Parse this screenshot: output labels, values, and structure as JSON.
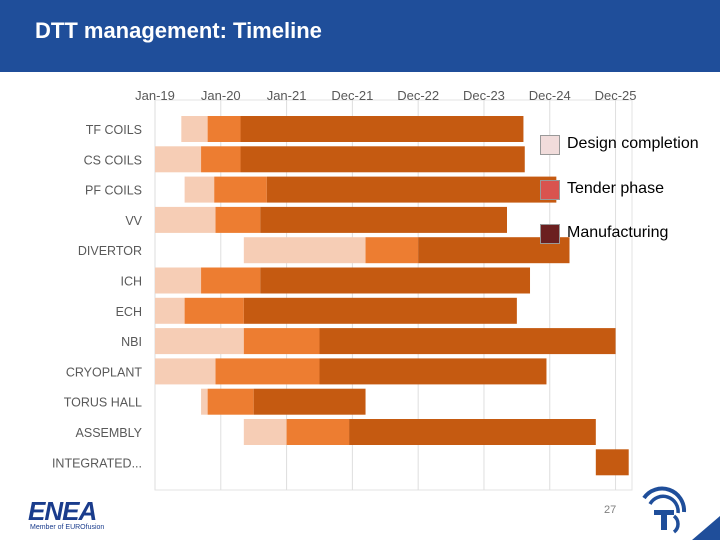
{
  "header": {
    "title": "DTT management: Timeline"
  },
  "chart_data": {
    "type": "gantt",
    "title": "",
    "x_axis": {
      "tick_labels": [
        "Jan-19",
        "Jan-20",
        "Jan-21",
        "Dec-21",
        "Dec-22",
        "Dec-23",
        "Dec-24",
        "Dec-25"
      ],
      "tick_years": [
        2019,
        2020,
        2021,
        2022,
        2023,
        2024,
        2025,
        2026
      ],
      "range": [
        2019,
        2026.25
      ]
    },
    "legend": {
      "placement": "right",
      "entries": [
        {
          "label": "Design completion",
          "color": "#f1dcdb"
        },
        {
          "label": "Tender phase",
          "color": "#d9534f"
        },
        {
          "label": "Manufacturing",
          "color": "#6b1f1f"
        }
      ]
    },
    "series_colors": {
      "design": "#f6cdb5",
      "tender": "#ed7d31",
      "manufacturing": "#c55a11"
    },
    "rows": [
      {
        "name": "TF COILS",
        "design": [
          2019.4,
          2019.8
        ],
        "tender": [
          2019.8,
          2020.3
        ],
        "manufacturing": [
          2020.3,
          2024.6
        ]
      },
      {
        "name": "CS COILS",
        "design": [
          2019.0,
          2019.7
        ],
        "tender": [
          2019.7,
          2020.3
        ],
        "manufacturing": [
          2020.3,
          2024.62
        ]
      },
      {
        "name": "PF COILS",
        "design": [
          2019.45,
          2019.9
        ],
        "tender": [
          2019.9,
          2020.7
        ],
        "manufacturing": [
          2020.7,
          2025.1
        ]
      },
      {
        "name": "VV",
        "design": [
          2019.0,
          2019.92
        ],
        "tender": [
          2019.92,
          2020.6
        ],
        "manufacturing": [
          2020.6,
          2024.35
        ]
      },
      {
        "name": "DIVERTOR",
        "design": [
          2020.35,
          2022.2
        ],
        "tender": [
          2022.2,
          2023.0
        ],
        "manufacturing": [
          2023.0,
          2025.3
        ]
      },
      {
        "name": "ICH",
        "design": [
          2019.0,
          2019.7
        ],
        "tender": [
          2019.7,
          2020.6
        ],
        "manufacturing": [
          2020.6,
          2024.7
        ]
      },
      {
        "name": "ECH",
        "design": [
          2019.0,
          2019.45
        ],
        "tender": [
          2019.45,
          2020.35
        ],
        "manufacturing": [
          2020.35,
          2024.5
        ]
      },
      {
        "name": "NBI",
        "design": [
          2019.0,
          2020.35
        ],
        "tender": [
          2020.35,
          2021.5
        ],
        "manufacturing": [
          2021.5,
          2026.0
        ]
      },
      {
        "name": "CRYOPLANT",
        "design": [
          2019.0,
          2019.92
        ],
        "tender": [
          2019.92,
          2021.5
        ],
        "manufacturing": [
          2021.5,
          2024.95
        ]
      },
      {
        "name": "TORUS HALL",
        "design": [
          2019.7,
          2019.8
        ],
        "tender": [
          2019.8,
          2020.5
        ],
        "manufacturing": [
          2020.5,
          2022.2
        ]
      },
      {
        "name": "ASSEMBLY",
        "design": [
          2020.35,
          2021.0
        ],
        "tender": [
          2021.0,
          2021.95
        ],
        "manufacturing": [
          2021.95,
          2025.7
        ]
      },
      {
        "name": "INTEGRATED...",
        "design": null,
        "tender": null,
        "manufacturing": [
          2025.7,
          2026.2
        ]
      }
    ]
  },
  "footer": {
    "page_number": "27",
    "org_logo_text": "ENEA",
    "org_logo_subtext": "Member of EUROfusion"
  }
}
